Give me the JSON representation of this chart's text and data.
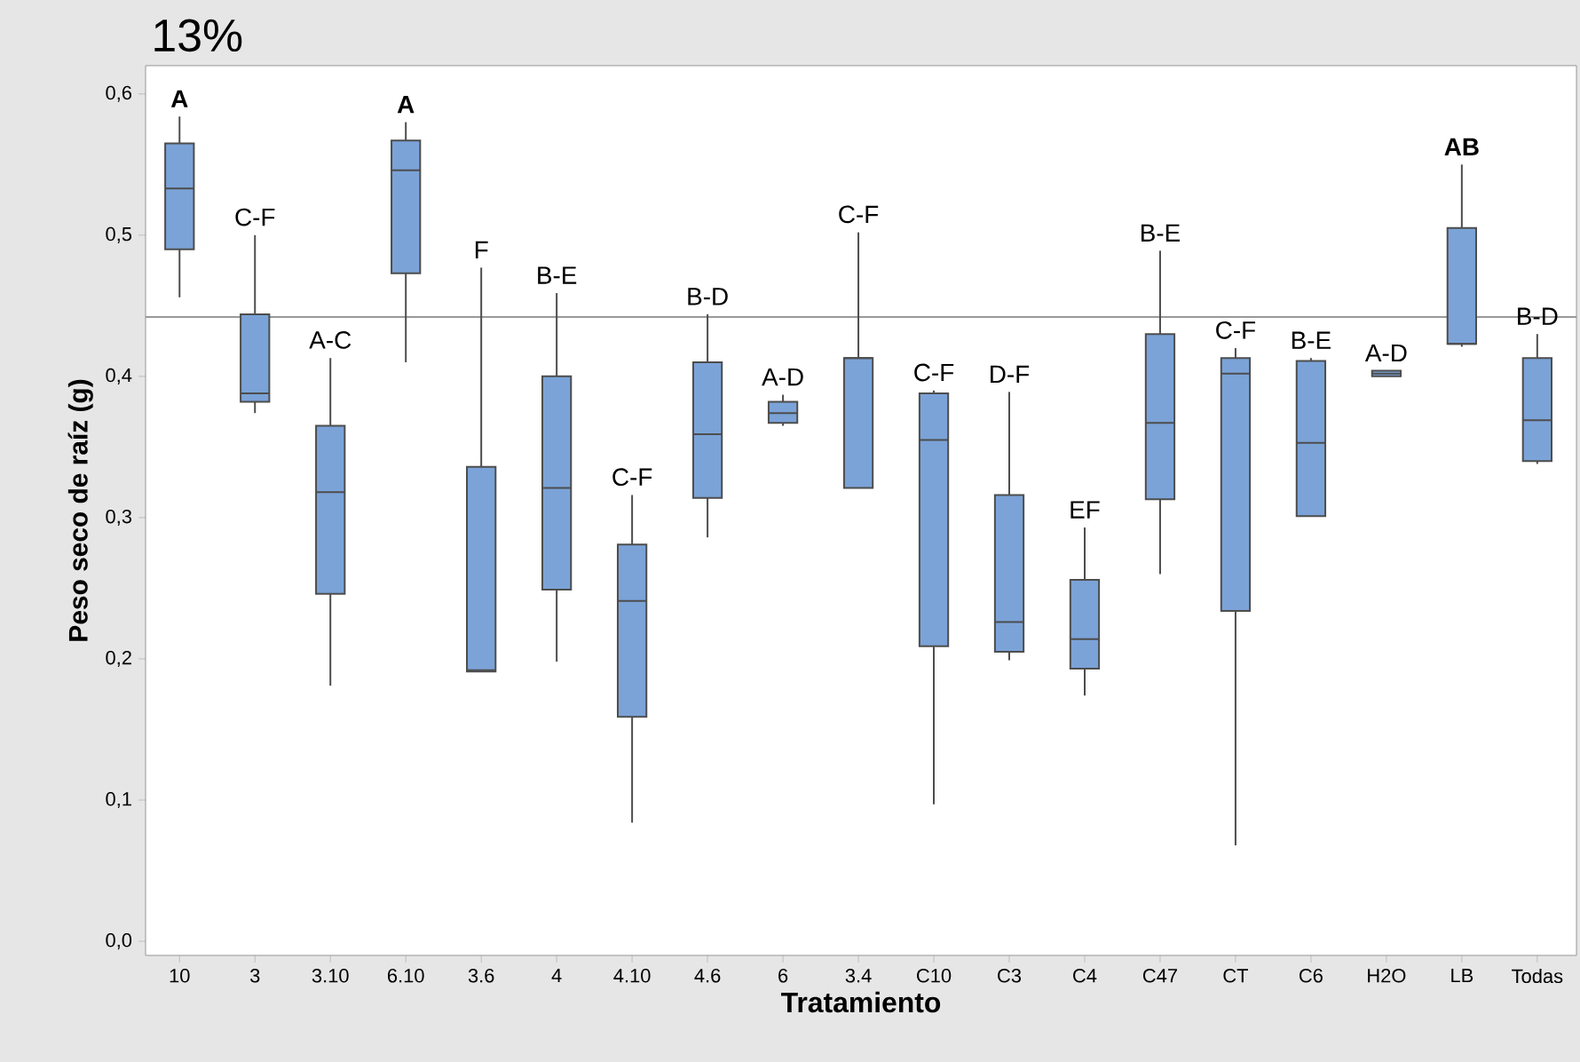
{
  "chart_data": {
    "type": "box",
    "title": "13%",
    "xlabel": "Tratamiento",
    "ylabel": "Peso seco de raíz (g)",
    "categories": [
      "10",
      "3",
      "3.10",
      "6.10",
      "3.6",
      "4",
      "4.10",
      "4.6",
      "6",
      "3.4",
      "C10",
      "C3",
      "C4",
      "C47",
      "CT",
      "C6",
      "H2O",
      "LB",
      "Todas"
    ],
    "series": [
      {
        "color": "#7ba3d8",
        "boxes": [
          {
            "low": 0.456,
            "q1": 0.49,
            "median": 0.533,
            "q3": 0.565,
            "high": 0.584
          },
          {
            "low": 0.374,
            "q1": 0.382,
            "median": 0.388,
            "q3": 0.444,
            "high": 0.5
          },
          {
            "low": 0.181,
            "q1": 0.246,
            "median": 0.318,
            "q3": 0.365,
            "high": 0.413
          },
          {
            "low": 0.41,
            "q1": 0.473,
            "median": 0.546,
            "q3": 0.567,
            "high": 0.58
          },
          {
            "low": 0.191,
            "q1": 0.191,
            "median": 0.192,
            "q3": 0.336,
            "high": 0.477
          },
          {
            "low": 0.198,
            "q1": 0.249,
            "median": 0.321,
            "q3": 0.4,
            "high": 0.459
          },
          {
            "low": 0.084,
            "q1": 0.159,
            "median": 0.241,
            "q3": 0.281,
            "high": 0.316
          },
          {
            "low": 0.286,
            "q1": 0.314,
            "median": 0.359,
            "q3": 0.41,
            "high": 0.444
          },
          {
            "low": 0.365,
            "q1": 0.367,
            "median": 0.374,
            "q3": 0.382,
            "high": 0.387
          },
          {
            "low": 0.321,
            "q1": 0.321,
            "median": 0.413,
            "q3": 0.413,
            "high": 0.502
          },
          {
            "low": 0.097,
            "q1": 0.209,
            "median": 0.355,
            "q3": 0.388,
            "high": 0.39
          },
          {
            "low": 0.199,
            "q1": 0.205,
            "median": 0.226,
            "q3": 0.316,
            "high": 0.389
          },
          {
            "low": 0.174,
            "q1": 0.193,
            "median": 0.214,
            "q3": 0.256,
            "high": 0.293
          },
          {
            "low": 0.26,
            "q1": 0.313,
            "median": 0.367,
            "q3": 0.43,
            "high": 0.489
          },
          {
            "low": 0.068,
            "q1": 0.234,
            "median": 0.402,
            "q3": 0.413,
            "high": 0.42
          },
          {
            "low": 0.301,
            "q1": 0.301,
            "median": 0.353,
            "q3": 0.411,
            "high": 0.413
          },
          {
            "low": 0.4,
            "q1": 0.4,
            "median": 0.402,
            "q3": 0.404,
            "high": 0.404
          },
          {
            "low": 0.421,
            "q1": 0.423,
            "median": 0.423,
            "q3": 0.505,
            "high": 0.55
          },
          {
            "low": 0.338,
            "q1": 0.34,
            "median": 0.369,
            "q3": 0.413,
            "high": 0.43
          }
        ]
      }
    ],
    "ylim": [
      -0.01,
      0.62
    ],
    "yticks": [
      {
        "value": 0,
        "label": "0,0"
      },
      {
        "value": 0.1,
        "label": "0,1"
      },
      {
        "value": 0.2,
        "label": "0,2"
      },
      {
        "value": 0.3,
        "label": "0,3"
      },
      {
        "value": 0.4,
        "label": "0,4"
      },
      {
        "value": 0.5,
        "label": "0,5"
      },
      {
        "value": 0.6,
        "label": "0,6"
      }
    ],
    "ref_lines": [
      {
        "axis": "y",
        "value": 0.442,
        "color": "#999999"
      }
    ],
    "annotations": [
      "**A**",
      "C-F",
      "A-C",
      "**A**",
      "F",
      "B-E",
      "C-F",
      "B-D",
      "A-D",
      "C-F",
      "C-F",
      "D-F",
      "EF",
      "B-E",
      "C-F",
      "B-E",
      "A-D",
      "**AB**",
      "B-D"
    ]
  }
}
